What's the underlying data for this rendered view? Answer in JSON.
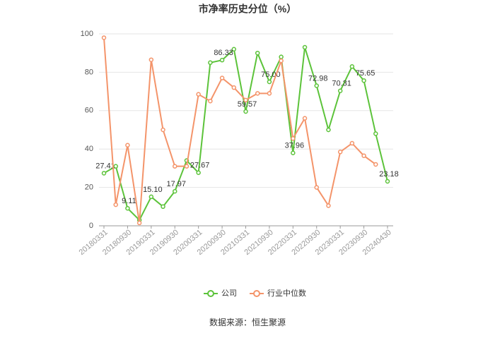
{
  "chart_data": {
    "type": "line",
    "title": "市净率历史分位（%）",
    "categories": [
      "20180331",
      null,
      "20180930",
      null,
      "20190331",
      null,
      "20190930",
      null,
      "20200331",
      null,
      "20200930",
      null,
      "20210331",
      null,
      "20210930",
      null,
      "20220331",
      null,
      "20220930",
      null,
      "20230331",
      null,
      "20230930",
      null,
      "20240430"
    ],
    "series": [
      {
        "name": "公司",
        "color": "#5cc33a",
        "values": [
          27.41,
          31,
          9.11,
          3,
          15.1,
          10,
          17.97,
          34,
          27.67,
          85,
          86.33,
          92,
          59.57,
          90,
          75.0,
          88,
          37.96,
          93,
          72.98,
          50,
          70.31,
          83,
          75.65,
          48,
          23.18
        ],
        "value_labels": [
          "27.41",
          null,
          "9.11",
          null,
          "15.10",
          null,
          "17.97",
          null,
          "27.67",
          null,
          "86.33",
          null,
          "59.57",
          null,
          "75.00",
          null,
          "37.96",
          null,
          "72.98",
          null,
          "70.31",
          null,
          "75.65",
          null,
          "23.18"
        ]
      },
      {
        "name": "行业中位数",
        "color": "#f4946a",
        "values": [
          98,
          11,
          42,
          1.5,
          86.5,
          50,
          31,
          31,
          68.5,
          65,
          77,
          72,
          65.5,
          69,
          69,
          86,
          45.5,
          56,
          20,
          10.5,
          38.5,
          43,
          36.5,
          32,
          null
        ]
      }
    ],
    "ylim": [
      0,
      100
    ],
    "yticks": [
      0,
      20,
      40,
      60,
      80,
      100
    ],
    "grid": true,
    "legend": "bottom",
    "source": "数据来源：恒生聚源"
  }
}
